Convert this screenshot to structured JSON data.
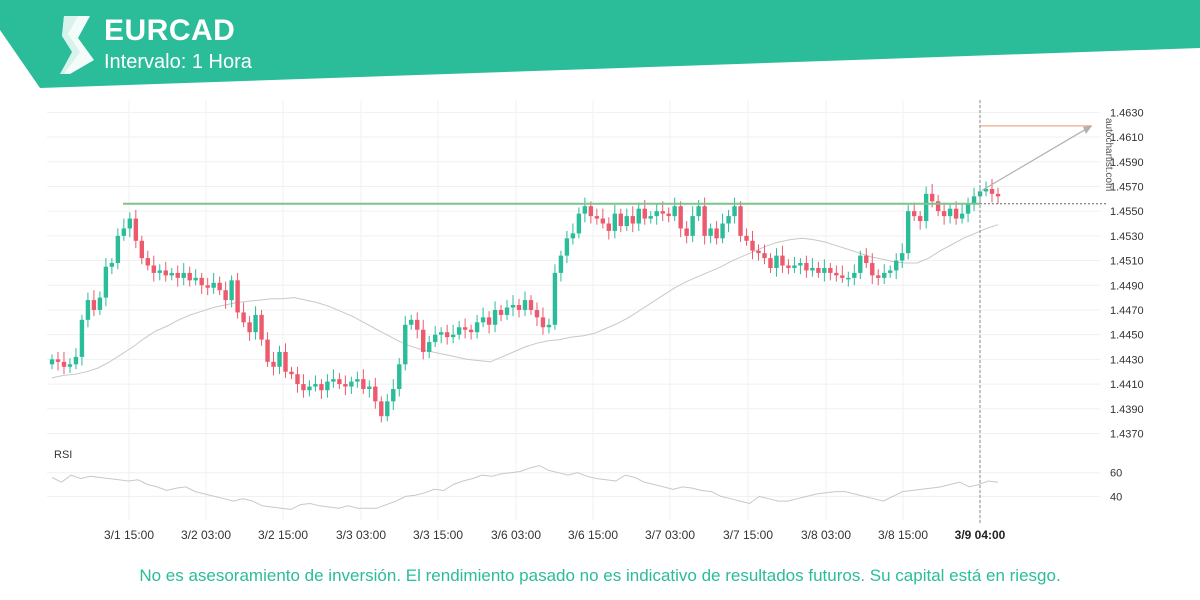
{
  "header": {
    "title": "EURCAD",
    "subtitle": "Intervalo: 1 Hora",
    "logo_icon": "autochartist-logo-icon",
    "brand_color": "#2bbc9a"
  },
  "watermark": "autochartist.com",
  "disclaimer": "No es asesoramiento de inversión. El rendimiento pasado no es indicativo de resultados futuros. Su capital está en riesgo.",
  "chart_data": {
    "type": "candlestick",
    "symbol": "EURCAD",
    "interval": "1 Hora",
    "y_ticks": [
      "1.4630",
      "1.4610",
      "1.4590",
      "1.4570",
      "1.4550",
      "1.4530",
      "1.4510",
      "1.4490",
      "1.4470",
      "1.4450",
      "1.4430",
      "1.4410",
      "1.4390",
      "1.4370"
    ],
    "ylim": [
      1.4355,
      1.464
    ],
    "x_ticks": [
      "3/1 15:00",
      "3/2 03:00",
      "3/2 15:00",
      "3/3 03:00",
      "3/3 15:00",
      "3/6 03:00",
      "3/6 15:00",
      "3/7 03:00",
      "3/7 15:00",
      "3/8 03:00",
      "3/8 15:00",
      "3/9 04:00"
    ],
    "current_time_label": "3/9 04:00",
    "resistance_level": 1.4556,
    "target_level": 1.4619,
    "colors": {
      "up": "#2bbc9a",
      "down": "#ec5a6e",
      "resistance": "#7cc489",
      "target": "#f0956a",
      "sma": "#c8c8c8",
      "rsi": "#c8c8c8"
    },
    "candles_close": [
      1.443,
      1.4428,
      1.4424,
      1.4426,
      1.4432,
      1.4462,
      1.4478,
      1.447,
      1.448,
      1.4505,
      1.4508,
      1.453,
      1.4536,
      1.4544,
      1.4526,
      1.4512,
      1.4506,
      1.45,
      1.4502,
      1.4498,
      1.45,
      1.4496,
      1.45,
      1.4494,
      1.4496,
      1.449,
      1.4488,
      1.4492,
      1.4486,
      1.4478,
      1.4494,
      1.4468,
      1.446,
      1.4452,
      1.4466,
      1.4446,
      1.4428,
      1.4424,
      1.4436,
      1.442,
      1.4418,
      1.441,
      1.4405,
      1.4408,
      1.441,
      1.4405,
      1.4412,
      1.4414,
      1.441,
      1.4408,
      1.4412,
      1.4414,
      1.4406,
      1.4408,
      1.4396,
      1.4384,
      1.4396,
      1.4406,
      1.4426,
      1.4458,
      1.4462,
      1.4454,
      1.4436,
      1.4444,
      1.445,
      1.4452,
      1.4448,
      1.445,
      1.4456,
      1.4454,
      1.4452,
      1.446,
      1.4464,
      1.4458,
      1.447,
      1.4466,
      1.4472,
      1.4474,
      1.447,
      1.4478,
      1.447,
      1.4464,
      1.4456,
      1.4458,
      1.45,
      1.4514,
      1.4528,
      1.4532,
      1.4548,
      1.4554,
      1.4546,
      1.4544,
      1.454,
      1.4534,
      1.4548,
      1.4538,
      1.4546,
      1.454,
      1.4552,
      1.4544,
      1.4546,
      1.455,
      1.4548,
      1.4546,
      1.4554,
      1.4536,
      1.453,
      1.4546,
      1.4554,
      1.453,
      1.4536,
      1.4528,
      1.454,
      1.4546,
      1.4554,
      1.453,
      1.4526,
      1.4518,
      1.4516,
      1.4512,
      1.4504,
      1.4514,
      1.4506,
      1.4504,
      1.4506,
      1.4508,
      1.4502,
      1.4504,
      1.45,
      1.4504,
      1.45,
      1.4498,
      1.4496,
      1.4496,
      1.45,
      1.4514,
      1.4508,
      1.4498,
      1.4496,
      1.45,
      1.4502,
      1.451,
      1.4516,
      1.455,
      1.4546,
      1.4542,
      1.4564,
      1.4558,
      1.455,
      1.4546,
      1.4552,
      1.4544,
      1.4548,
      1.4556,
      1.4562,
      1.4566,
      1.4568,
      1.4564,
      1.4562
    ],
    "sma": [
      1.4415,
      1.4417,
      1.4418,
      1.442,
      1.4423,
      1.4428,
      1.4434,
      1.444,
      1.4447,
      1.4453,
      1.4457,
      1.4462,
      1.4466,
      1.4469,
      1.4472,
      1.4474,
      1.4476,
      1.4477,
      1.4478,
      1.4479,
      1.4479,
      1.448,
      1.4478,
      1.4476,
      1.4473,
      1.4469,
      1.4465,
      1.446,
      1.4455,
      1.445,
      1.4445,
      1.4441,
      1.4438,
      1.4436,
      1.4434,
      1.4432,
      1.443,
      1.4429,
      1.4428,
      1.4432,
      1.4436,
      1.444,
      1.4443,
      1.4445,
      1.4446,
      1.4448,
      1.4449,
      1.4451,
      1.4455,
      1.4459,
      1.4464,
      1.447,
      1.4476,
      1.4482,
      1.4488,
      1.4493,
      1.4497,
      1.4501,
      1.4505,
      1.451,
      1.4514,
      1.4518,
      1.4522,
      1.4525,
      1.4527,
      1.4528,
      1.4527,
      1.4525,
      1.4522,
      1.4519,
      1.4516,
      1.4513,
      1.4511,
      1.4509,
      1.4508,
      1.4508,
      1.4512,
      1.4518,
      1.4523,
      1.4528,
      1.4532,
      1.4536,
      1.4539
    ],
    "rsi": [
      56,
      52,
      58,
      55,
      57,
      56,
      55,
      54,
      53,
      54,
      50,
      48,
      45,
      47,
      48,
      44,
      42,
      40,
      38,
      36,
      38,
      36,
      32,
      31,
      30,
      29,
      33,
      34,
      32,
      31,
      30,
      32,
      30,
      30,
      30,
      33,
      36,
      40,
      41,
      43,
      46,
      45,
      50,
      53,
      55,
      58,
      57,
      59,
      60,
      61,
      64,
      66,
      62,
      60,
      58,
      60,
      57,
      55,
      54,
      53,
      58,
      56,
      52,
      50,
      48,
      46,
      48,
      47,
      45,
      44,
      40,
      38,
      36,
      34,
      40,
      38,
      36,
      36,
      38,
      40,
      42,
      43,
      44,
      44,
      42,
      40,
      38,
      36,
      40,
      44,
      45,
      46,
      47,
      48,
      50,
      52,
      48,
      50,
      53,
      52
    ],
    "rsi_ticks": [
      "60",
      "40"
    ],
    "rsi_label": "RSI"
  }
}
